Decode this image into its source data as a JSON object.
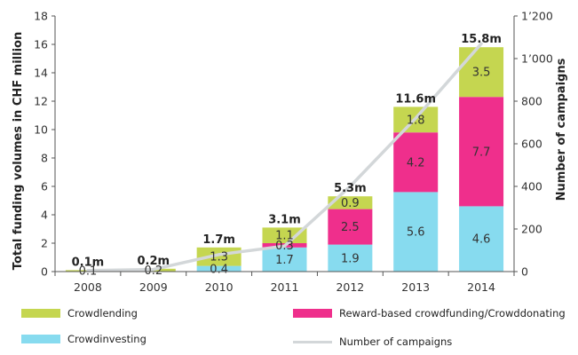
{
  "chart_data": {
    "type": "bar",
    "stacked": true,
    "categories": [
      "2008",
      "2009",
      "2010",
      "2011",
      "2012",
      "2013",
      "2014"
    ],
    "series": [
      {
        "name": "Crowdinvesting",
        "color": "#87dbef",
        "values": [
          0,
          0,
          0.4,
          1.7,
          1.9,
          5.6,
          4.6
        ],
        "labels": [
          "",
          "",
          "0.4",
          "1.7",
          "1.9",
          "5.6",
          "4.6"
        ]
      },
      {
        "name": "Reward-based crowdfunding/Crowddonating",
        "color": "#ef2f8c",
        "values": [
          0,
          0,
          0,
          0.3,
          2.5,
          4.2,
          7.7
        ],
        "labels": [
          "",
          "",
          "",
          "0.3",
          "2.5",
          "4.2",
          "7.7"
        ]
      },
      {
        "name": "Crowdlending",
        "color": "#c5d650",
        "values": [
          0.1,
          0.2,
          1.3,
          1.1,
          0.9,
          1.8,
          3.5
        ],
        "labels": [
          "0.1",
          "0.2",
          "1.3",
          "1.1",
          "0.9",
          "1.8",
          "3.5"
        ]
      }
    ],
    "totals": [
      "0.1m",
      "0.2m",
      "1.7m",
      "3.1m",
      "5.3m",
      "11.6m",
      "15.8m"
    ],
    "line_series": {
      "name": "Number of campaigns",
      "color": "#d3d7d9",
      "values": [
        5,
        10,
        80,
        120,
        400,
        720,
        1070
      ]
    },
    "ylabel": "Total funding volumes in CHF million",
    "ylim": [
      0,
      18
    ],
    "yticks": [
      "0",
      "2",
      "4",
      "6",
      "8",
      "10",
      "12",
      "14",
      "16",
      "18"
    ],
    "y2label": "Number of campaigns",
    "y2lim": [
      0,
      1200
    ],
    "y2ticks": [
      "0",
      "200",
      "400",
      "600",
      "800",
      "1’000",
      "1’200"
    ],
    "grid": false,
    "legend_position": "bottom"
  },
  "legend": [
    {
      "label": "Crowdlending",
      "kind": "bar",
      "color": "#c5d650"
    },
    {
      "label": "Reward-based crowdfunding/Crowddonating",
      "kind": "bar",
      "color": "#ef2f8c"
    },
    {
      "label": "Crowdinvesting",
      "kind": "bar",
      "color": "#87dbef"
    },
    {
      "label": "Number of campaigns",
      "kind": "line",
      "color": "#d3d7d9"
    }
  ]
}
